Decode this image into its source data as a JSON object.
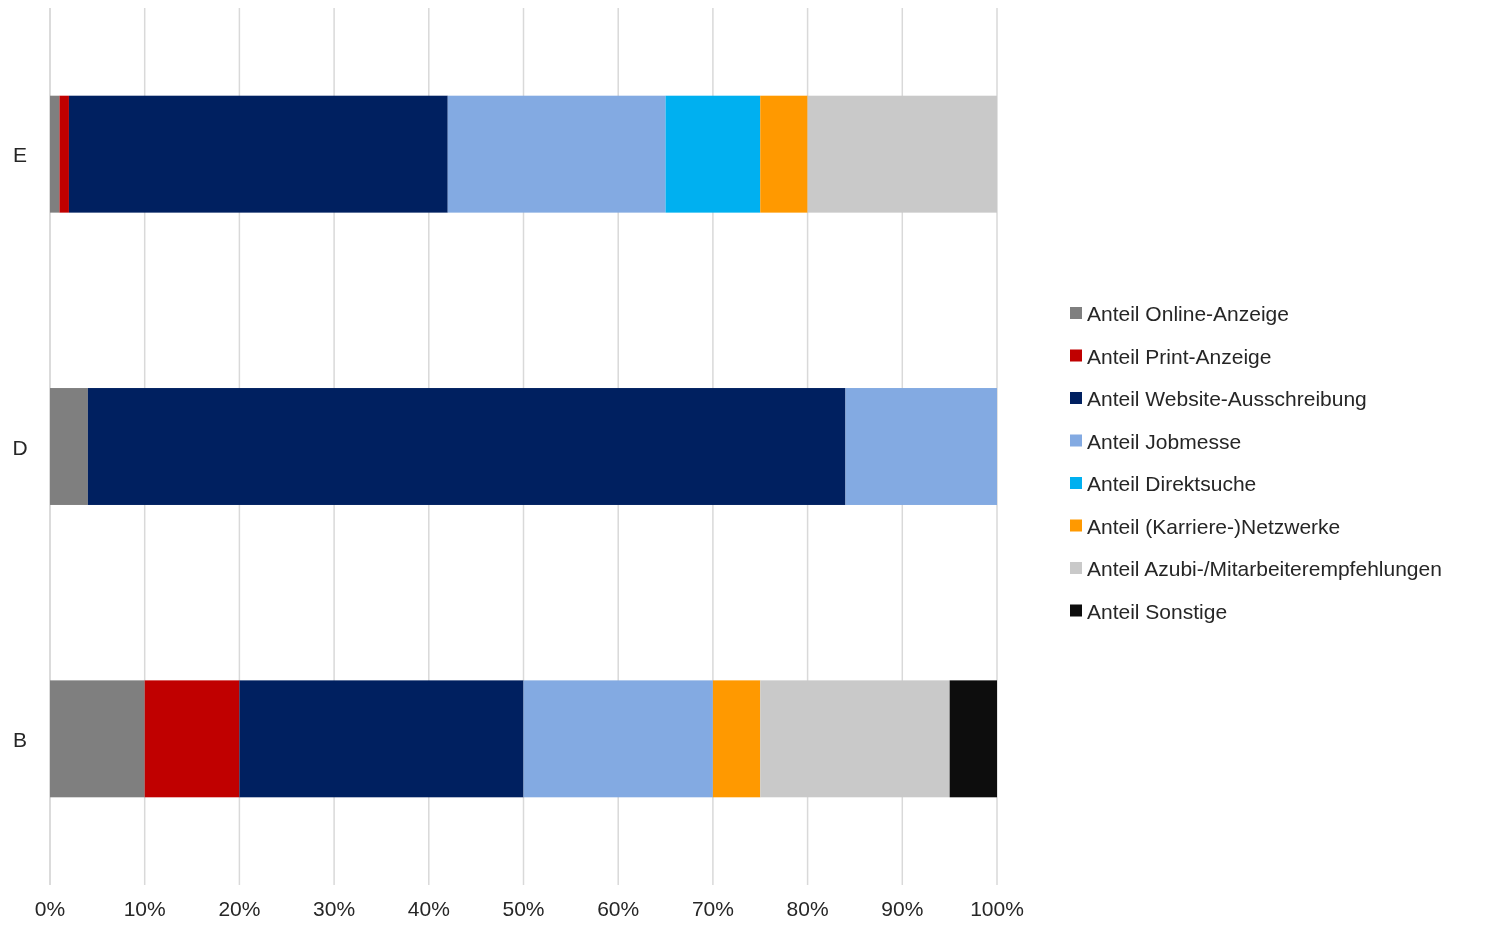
{
  "chart_data": {
    "type": "bar",
    "orientation": "horizontal",
    "stacked": true,
    "categories": [
      "E",
      "D",
      "B"
    ],
    "series": [
      {
        "name": "Anteil Online-Anzeige",
        "color": "#7f7f7f",
        "values": [
          1,
          4,
          10
        ]
      },
      {
        "name": "Anteil Print-Anzeige",
        "color": "#c00000",
        "values": [
          1,
          0,
          10
        ]
      },
      {
        "name": "Anteil Website-Ausschreibung",
        "color": "#002060",
        "values": [
          40,
          80,
          30
        ]
      },
      {
        "name": "Anteil Jobmesse",
        "color": "#83aae2",
        "values": [
          23,
          16,
          20
        ]
      },
      {
        "name": "Anteil Direktsuche",
        "color": "#00b0f0",
        "values": [
          10,
          0,
          0
        ]
      },
      {
        "name": "Anteil (Karriere-)Netzwerke",
        "color": "#ff9900",
        "values": [
          5,
          0,
          5
        ]
      },
      {
        "name": "Anteil Azubi-/Mitarbeiterempfehlungen",
        "color": "#c9c9c9",
        "values": [
          20,
          0,
          20
        ]
      },
      {
        "name": "Anteil Sonstige",
        "color": "#0d0d0d",
        "values": [
          0,
          0,
          5
        ]
      }
    ],
    "xlim": [
      0,
      100
    ],
    "xticks": [
      {
        "value": 0,
        "label": "0%"
      },
      {
        "value": 10,
        "label": "10%"
      },
      {
        "value": 20,
        "label": "20%"
      },
      {
        "value": 30,
        "label": "30%"
      },
      {
        "value": 40,
        "label": "40%"
      },
      {
        "value": 50,
        "label": "50%"
      },
      {
        "value": 60,
        "label": "60%"
      },
      {
        "value": 70,
        "label": "70%"
      },
      {
        "value": 80,
        "label": "80%"
      },
      {
        "value": 90,
        "label": "90%"
      },
      {
        "value": 100,
        "label": "100%"
      }
    ],
    "grid": "x",
    "legend": "right"
  }
}
